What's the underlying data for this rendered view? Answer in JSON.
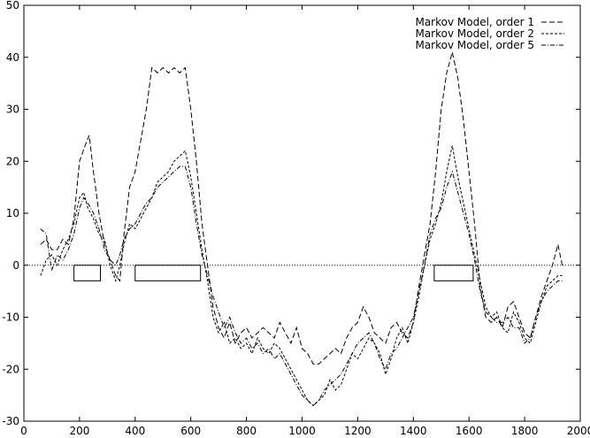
{
  "chart_data": {
    "type": "line",
    "title": "",
    "xlabel": "",
    "ylabel": "",
    "xlim": [
      0,
      2000
    ],
    "ylim": [
      -30,
      50
    ],
    "xticks": [
      0,
      200,
      400,
      600,
      800,
      1000,
      1200,
      1400,
      1600,
      1800,
      2000
    ],
    "yticks": [
      -30,
      -20,
      -10,
      0,
      10,
      20,
      30,
      40,
      50
    ],
    "grid": false,
    "legend": "top-right",
    "zero_line": true,
    "series": [
      {
        "name": "Markov Model, order 1",
        "points": [
          [
            60,
            4
          ],
          [
            80,
            5
          ],
          [
            100,
            3
          ],
          [
            120,
            3
          ],
          [
            140,
            5
          ],
          [
            160,
            4
          ],
          [
            180,
            9
          ],
          [
            200,
            20
          ],
          [
            220,
            23
          ],
          [
            235,
            25
          ],
          [
            250,
            18
          ],
          [
            270,
            10
          ],
          [
            290,
            4
          ],
          [
            310,
            1
          ],
          [
            330,
            -2
          ],
          [
            345,
            -3
          ],
          [
            360,
            6
          ],
          [
            380,
            15
          ],
          [
            400,
            18
          ],
          [
            420,
            24
          ],
          [
            440,
            30
          ],
          [
            460,
            38
          ],
          [
            480,
            37
          ],
          [
            500,
            38
          ],
          [
            520,
            37
          ],
          [
            540,
            38
          ],
          [
            560,
            37
          ],
          [
            580,
            38
          ],
          [
            600,
            30
          ],
          [
            620,
            20
          ],
          [
            640,
            8
          ],
          [
            660,
            0
          ],
          [
            680,
            -8
          ],
          [
            700,
            -12
          ],
          [
            720,
            -14
          ],
          [
            740,
            -11
          ],
          [
            760,
            -15
          ],
          [
            780,
            -13
          ],
          [
            800,
            -12
          ],
          [
            820,
            -14
          ],
          [
            840,
            -13
          ],
          [
            860,
            -12
          ],
          [
            880,
            -13
          ],
          [
            900,
            -14
          ],
          [
            920,
            -11
          ],
          [
            940,
            -13
          ],
          [
            960,
            -15
          ],
          [
            980,
            -12
          ],
          [
            1000,
            -16
          ],
          [
            1020,
            -17
          ],
          [
            1040,
            -19
          ],
          [
            1060,
            -19
          ],
          [
            1080,
            -18
          ],
          [
            1100,
            -17
          ],
          [
            1120,
            -16
          ],
          [
            1140,
            -17
          ],
          [
            1160,
            -14
          ],
          [
            1180,
            -12
          ],
          [
            1200,
            -11
          ],
          [
            1220,
            -8
          ],
          [
            1240,
            -10
          ],
          [
            1260,
            -13
          ],
          [
            1280,
            -14
          ],
          [
            1300,
            -15
          ],
          [
            1320,
            -12
          ],
          [
            1340,
            -11
          ],
          [
            1360,
            -13
          ],
          [
            1380,
            -14
          ],
          [
            1400,
            -11
          ],
          [
            1420,
            -4
          ],
          [
            1440,
            2
          ],
          [
            1460,
            8
          ],
          [
            1480,
            18
          ],
          [
            1500,
            30
          ],
          [
            1520,
            37
          ],
          [
            1540,
            41
          ],
          [
            1560,
            36
          ],
          [
            1580,
            28
          ],
          [
            1600,
            18
          ],
          [
            1620,
            8
          ],
          [
            1640,
            -4
          ],
          [
            1660,
            -10
          ],
          [
            1680,
            -11
          ],
          [
            1700,
            -10
          ],
          [
            1720,
            -12
          ],
          [
            1740,
            -8
          ],
          [
            1760,
            -7
          ],
          [
            1780,
            -10
          ],
          [
            1800,
            -13
          ],
          [
            1820,
            -14
          ],
          [
            1840,
            -10
          ],
          [
            1860,
            -6
          ],
          [
            1880,
            -3
          ],
          [
            1900,
            0
          ],
          [
            1920,
            4
          ],
          [
            1935,
            0
          ]
        ]
      },
      {
        "name": "Markov Model, order 2",
        "points": [
          [
            60,
            -2
          ],
          [
            80,
            1
          ],
          [
            100,
            2
          ],
          [
            120,
            0
          ],
          [
            140,
            3
          ],
          [
            160,
            5
          ],
          [
            180,
            8
          ],
          [
            200,
            13
          ],
          [
            215,
            14
          ],
          [
            230,
            11
          ],
          [
            250,
            9
          ],
          [
            270,
            6
          ],
          [
            290,
            5
          ],
          [
            310,
            0
          ],
          [
            330,
            -3
          ],
          [
            345,
            0
          ],
          [
            360,
            4
          ],
          [
            380,
            8
          ],
          [
            400,
            7
          ],
          [
            420,
            9
          ],
          [
            440,
            11
          ],
          [
            460,
            13
          ],
          [
            480,
            16
          ],
          [
            500,
            17
          ],
          [
            520,
            18
          ],
          [
            540,
            20
          ],
          [
            560,
            21
          ],
          [
            580,
            22
          ],
          [
            600,
            17
          ],
          [
            620,
            10
          ],
          [
            640,
            3
          ],
          [
            660,
            -3
          ],
          [
            680,
            -10
          ],
          [
            700,
            -13
          ],
          [
            720,
            -11
          ],
          [
            740,
            -15
          ],
          [
            760,
            -14
          ],
          [
            780,
            -16
          ],
          [
            800,
            -15
          ],
          [
            820,
            -17
          ],
          [
            840,
            -14
          ],
          [
            860,
            -16
          ],
          [
            880,
            -17
          ],
          [
            900,
            -15
          ],
          [
            920,
            -16
          ],
          [
            940,
            -18
          ],
          [
            960,
            -20
          ],
          [
            980,
            -22
          ],
          [
            1000,
            -24
          ],
          [
            1020,
            -26
          ],
          [
            1040,
            -27
          ],
          [
            1060,
            -26
          ],
          [
            1080,
            -25
          ],
          [
            1100,
            -22
          ],
          [
            1120,
            -24
          ],
          [
            1140,
            -23
          ],
          [
            1160,
            -20
          ],
          [
            1180,
            -17
          ],
          [
            1200,
            -18
          ],
          [
            1220,
            -16
          ],
          [
            1240,
            -14
          ],
          [
            1260,
            -15
          ],
          [
            1280,
            -17
          ],
          [
            1300,
            -21
          ],
          [
            1320,
            -18
          ],
          [
            1340,
            -14
          ],
          [
            1360,
            -12
          ],
          [
            1380,
            -15
          ],
          [
            1400,
            -11
          ],
          [
            1420,
            -6
          ],
          [
            1440,
            0
          ],
          [
            1460,
            5
          ],
          [
            1480,
            8
          ],
          [
            1500,
            12
          ],
          [
            1520,
            18
          ],
          [
            1540,
            23
          ],
          [
            1560,
            17
          ],
          [
            1580,
            12
          ],
          [
            1600,
            7
          ],
          [
            1620,
            2
          ],
          [
            1640,
            -3
          ],
          [
            1660,
            -8
          ],
          [
            1680,
            -10
          ],
          [
            1700,
            -9
          ],
          [
            1720,
            -12
          ],
          [
            1740,
            -13
          ],
          [
            1760,
            -9
          ],
          [
            1780,
            -11
          ],
          [
            1800,
            -14
          ],
          [
            1820,
            -15
          ],
          [
            1840,
            -11
          ],
          [
            1860,
            -7
          ],
          [
            1880,
            -4
          ],
          [
            1900,
            -3
          ],
          [
            1920,
            -2
          ],
          [
            1935,
            -2
          ]
        ]
      },
      {
        "name": "Markov Model, order 5",
        "points": [
          [
            60,
            7
          ],
          [
            80,
            6
          ],
          [
            100,
            -1
          ],
          [
            120,
            2
          ],
          [
            140,
            1
          ],
          [
            160,
            3
          ],
          [
            180,
            6
          ],
          [
            200,
            11
          ],
          [
            215,
            13
          ],
          [
            230,
            12
          ],
          [
            250,
            10
          ],
          [
            270,
            7
          ],
          [
            290,
            3
          ],
          [
            310,
            1
          ],
          [
            330,
            0
          ],
          [
            345,
            2
          ],
          [
            360,
            5
          ],
          [
            380,
            7
          ],
          [
            400,
            8
          ],
          [
            420,
            10
          ],
          [
            440,
            12
          ],
          [
            460,
            13
          ],
          [
            480,
            15
          ],
          [
            500,
            16
          ],
          [
            520,
            17
          ],
          [
            540,
            18
          ],
          [
            560,
            19
          ],
          [
            580,
            19
          ],
          [
            600,
            15
          ],
          [
            620,
            8
          ],
          [
            640,
            2
          ],
          [
            660,
            -2
          ],
          [
            680,
            -6
          ],
          [
            700,
            -9
          ],
          [
            720,
            -12
          ],
          [
            740,
            -10
          ],
          [
            760,
            -13
          ],
          [
            780,
            -15
          ],
          [
            800,
            -14
          ],
          [
            820,
            -16
          ],
          [
            840,
            -15
          ],
          [
            860,
            -17
          ],
          [
            880,
            -16
          ],
          [
            900,
            -18
          ],
          [
            920,
            -17
          ],
          [
            940,
            -19
          ],
          [
            960,
            -21
          ],
          [
            980,
            -23
          ],
          [
            1000,
            -25
          ],
          [
            1020,
            -26
          ],
          [
            1040,
            -27
          ],
          [
            1060,
            -26
          ],
          [
            1080,
            -24
          ],
          [
            1100,
            -23
          ],
          [
            1120,
            -22
          ],
          [
            1140,
            -21
          ],
          [
            1160,
            -19
          ],
          [
            1180,
            -17
          ],
          [
            1200,
            -15
          ],
          [
            1220,
            -14
          ],
          [
            1240,
            -13
          ],
          [
            1260,
            -15
          ],
          [
            1280,
            -18
          ],
          [
            1300,
            -20
          ],
          [
            1320,
            -17
          ],
          [
            1340,
            -16
          ],
          [
            1360,
            -14
          ],
          [
            1380,
            -12
          ],
          [
            1400,
            -10
          ],
          [
            1420,
            -5
          ],
          [
            1440,
            0
          ],
          [
            1460,
            6
          ],
          [
            1480,
            9
          ],
          [
            1500,
            11
          ],
          [
            1520,
            15
          ],
          [
            1540,
            18
          ],
          [
            1560,
            14
          ],
          [
            1580,
            10
          ],
          [
            1600,
            6
          ],
          [
            1620,
            1
          ],
          [
            1640,
            -5
          ],
          [
            1660,
            -9
          ],
          [
            1680,
            -10
          ],
          [
            1700,
            -11
          ],
          [
            1720,
            -11
          ],
          [
            1740,
            -10
          ],
          [
            1760,
            -12
          ],
          [
            1780,
            -12
          ],
          [
            1800,
            -15
          ],
          [
            1820,
            -14
          ],
          [
            1840,
            -10
          ],
          [
            1860,
            -7
          ],
          [
            1880,
            -5
          ],
          [
            1900,
            -4
          ],
          [
            1920,
            -3
          ],
          [
            1935,
            -3
          ]
        ]
      }
    ],
    "boxes": [
      {
        "x0": 180,
        "x1": 275,
        "y0": -3,
        "y1": 0
      },
      {
        "x0": 400,
        "x1": 635,
        "y0": -3,
        "y1": 0
      },
      {
        "x0": 1475,
        "x1": 1615,
        "y0": -3,
        "y1": 0
      }
    ]
  }
}
